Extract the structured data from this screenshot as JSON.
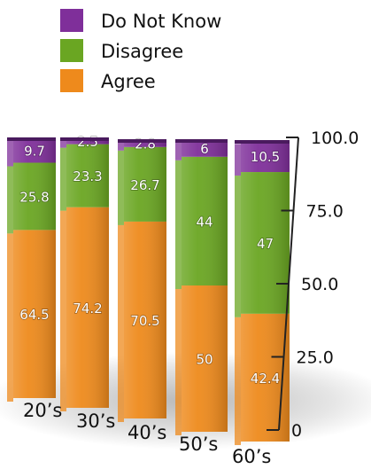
{
  "chart_data": {
    "type": "bar",
    "stacked": true,
    "categories": [
      "20’s",
      "30’s",
      "40’s",
      "50’s",
      "60’s"
    ],
    "series": [
      {
        "name": "Agree",
        "color": "#ee8a1c",
        "values": [
          64.5,
          74.2,
          70.5,
          50,
          42.4
        ]
      },
      {
        "name": "Disagree",
        "color": "#6aa622",
        "values": [
          25.8,
          23.3,
          26.7,
          44,
          47
        ]
      },
      {
        "name": "Do Not Know",
        "color": "#7f2f9a",
        "values": [
          9.7,
          2.5,
          2.8,
          6,
          10.5
        ]
      }
    ],
    "ylim": [
      0,
      100
    ],
    "yticks": [
      "0",
      "25.0",
      "50.0",
      "75.0",
      "100.0"
    ],
    "legend": {
      "position": "top",
      "order": [
        "Do Not Know",
        "Disagree",
        "Agree"
      ]
    },
    "grid": false
  }
}
